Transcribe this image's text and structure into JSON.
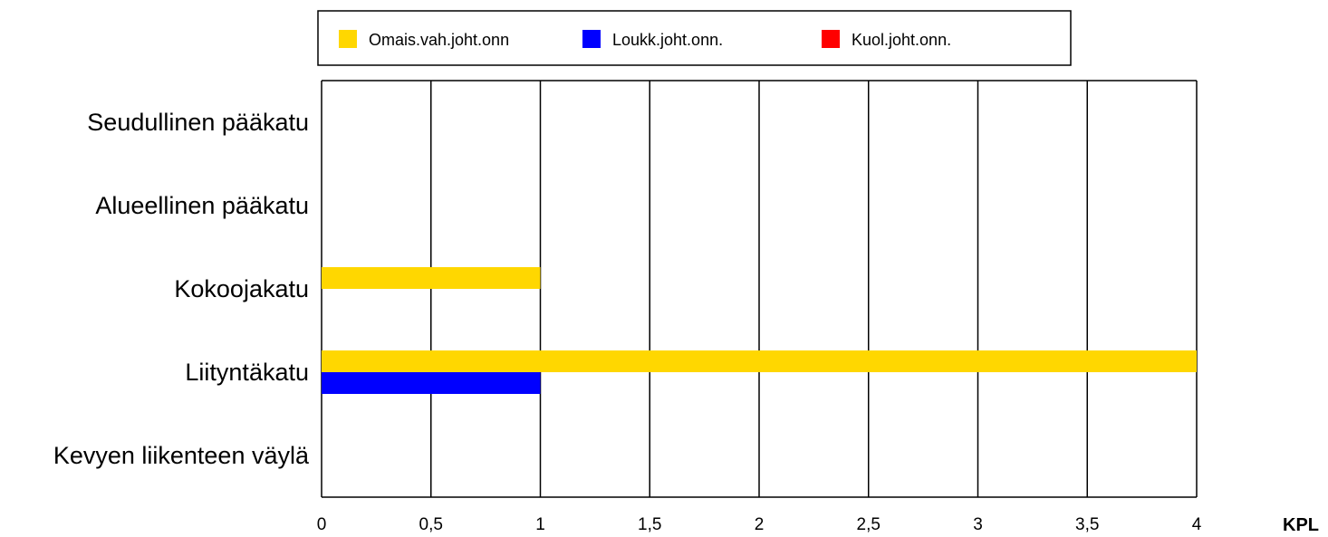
{
  "chart_data": {
    "type": "bar",
    "orientation": "horizontal",
    "categories": [
      "Seudullinen pääkatu",
      "Alueellinen pääkatu",
      "Kokoojakatu",
      "Liityntäkatu",
      "Kevyen liikenteen väylä"
    ],
    "series": [
      {
        "name": "Omais.vah.joht.onn",
        "color": "#FFD700",
        "values": [
          0,
          0,
          1,
          4,
          0
        ]
      },
      {
        "name": "Loukk.joht.onn.",
        "color": "#0000FF",
        "values": [
          0,
          0,
          0,
          1,
          0
        ]
      },
      {
        "name": "Kuol.joht.onn.",
        "color": "#FF0000",
        "values": [
          0,
          0,
          0,
          0,
          0
        ]
      }
    ],
    "xticks": [
      "0",
      "0,5",
      "1",
      "1,5",
      "2",
      "2,5",
      "3",
      "3,5",
      "4"
    ],
    "xlim": [
      0,
      4
    ],
    "xlabel": "KPL",
    "ylabel": "",
    "title": "",
    "grid": "vertical",
    "legend_position": "top"
  }
}
